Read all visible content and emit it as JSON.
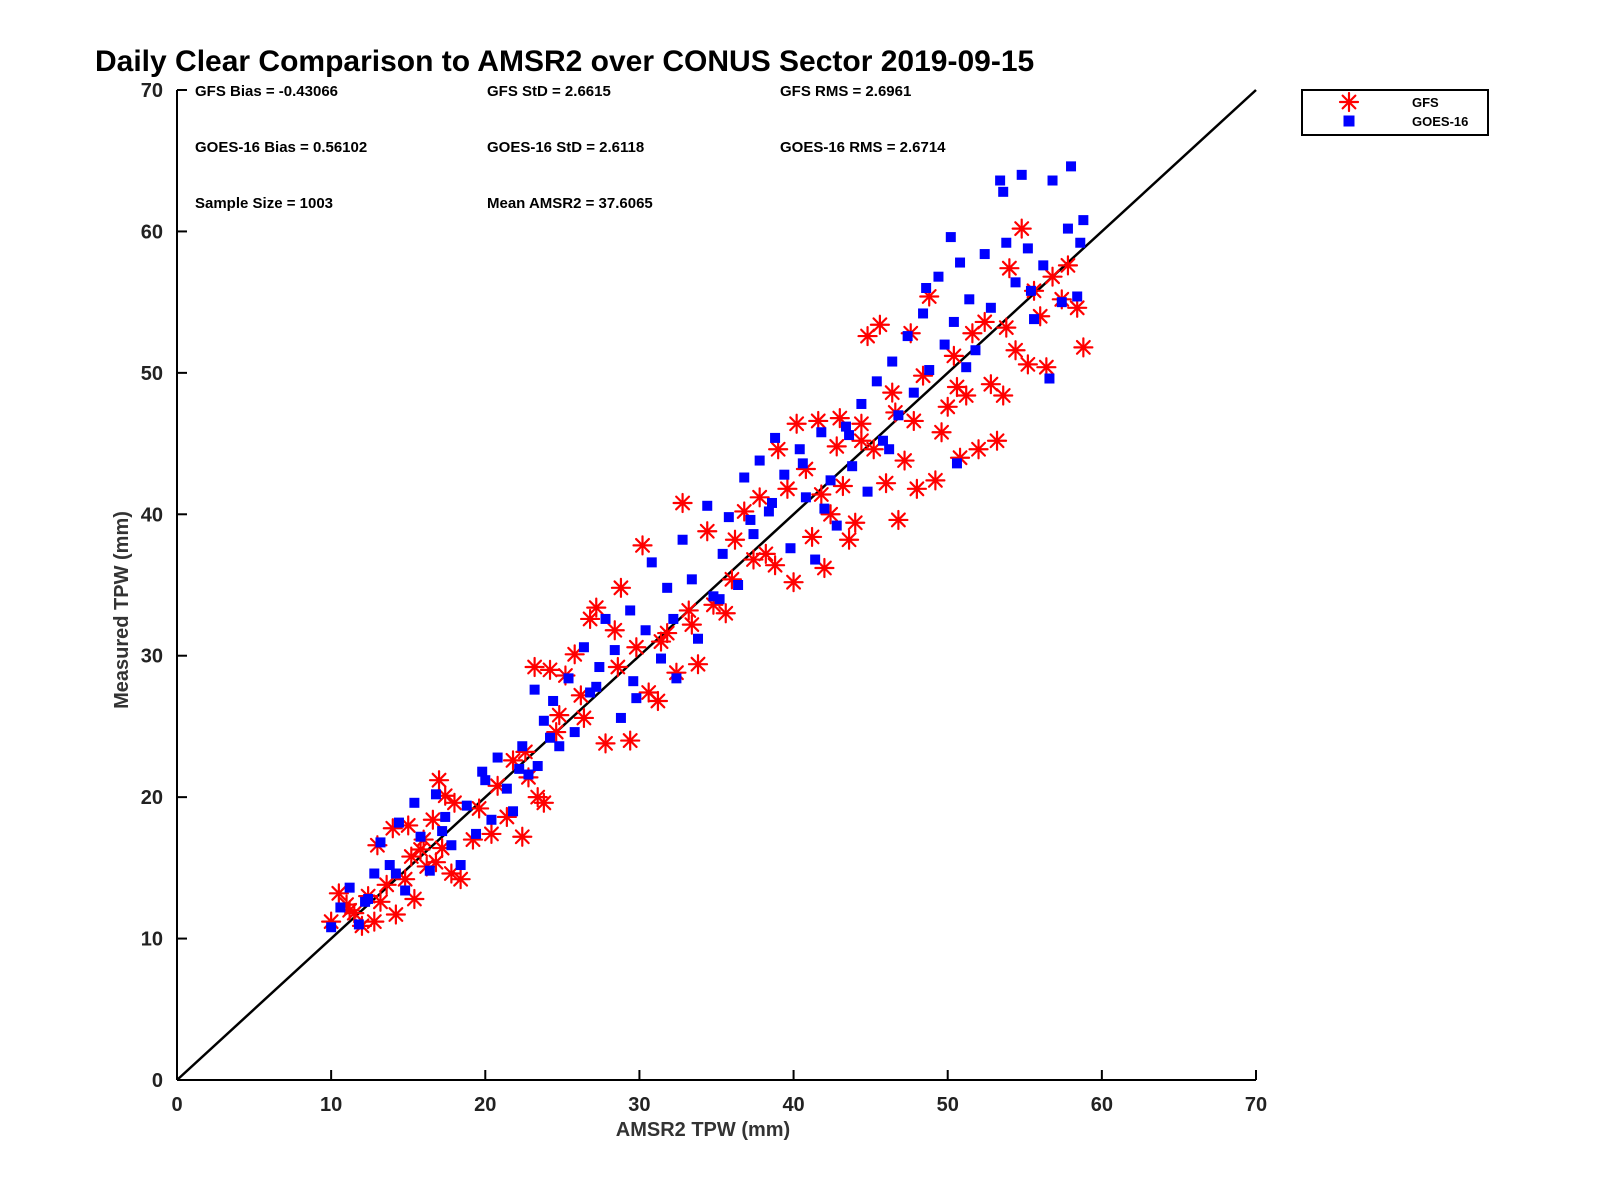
{
  "colors": {
    "gfs": "#ff0000",
    "goes16": "#0000ff",
    "axis": "#000000",
    "identity_line": "#000000"
  },
  "chart_data": {
    "type": "scatter",
    "title": "Daily Clear Comparison to AMSR2 over CONUS Sector 2019-09-15",
    "xlabel": "AMSR2 TPW (mm)",
    "ylabel": "Measured TPW (mm)",
    "xlim": [
      0,
      70
    ],
    "ylim": [
      0,
      70
    ],
    "xticks": [
      0,
      10,
      20,
      30,
      40,
      50,
      60,
      70
    ],
    "yticks": [
      0,
      10,
      20,
      30,
      40,
      50,
      60,
      70
    ],
    "grid": false,
    "legend_position": "outside-top-right",
    "reference_line": {
      "label": "",
      "x": [
        0,
        70
      ],
      "y": [
        0,
        70
      ]
    },
    "stats": {
      "gfs_bias": "GFS Bias = -0.43066",
      "gfs_std": "GFS StD = 2.6615",
      "gfs_rms": "GFS RMS = 2.6961",
      "goes_bias": "GOES-16 Bias = 0.56102",
      "goes_std": "GOES-16 StD = 2.6118",
      "goes_rms": "GOES-16 RMS = 2.6714",
      "sample_size": "Sample Size = 1003",
      "mean_amsr2": "Mean AMSR2 = 37.6065"
    },
    "series": [
      {
        "name": "GFS",
        "marker": "asterisk",
        "color": "#ff0000",
        "points": [
          [
            10.0,
            11.2
          ],
          [
            10.5,
            13.2
          ],
          [
            11.0,
            12.4
          ],
          [
            11.5,
            11.8
          ],
          [
            12.0,
            10.9
          ],
          [
            12.8,
            11.2
          ],
          [
            13.2,
            12.6
          ],
          [
            13.6,
            13.8
          ],
          [
            14.2,
            11.7
          ],
          [
            14.8,
            14.2
          ],
          [
            15.4,
            12.8
          ],
          [
            15.8,
            16.3
          ],
          [
            16.2,
            15.1
          ],
          [
            16.6,
            18.4
          ],
          [
            17.0,
            21.2
          ],
          [
            17.4,
            20.1
          ],
          [
            17.8,
            14.6
          ],
          [
            18.4,
            14.2
          ],
          [
            13.0,
            16.6
          ],
          [
            14.0,
            17.8
          ],
          [
            15.0,
            18.0
          ],
          [
            16.0,
            17.0
          ],
          [
            17.2,
            16.4
          ],
          [
            18.0,
            19.6
          ],
          [
            19.2,
            17.0
          ],
          [
            20.4,
            17.4
          ],
          [
            20.8,
            20.8
          ],
          [
            21.4,
            18.6
          ],
          [
            21.8,
            22.6
          ],
          [
            22.4,
            17.2
          ],
          [
            22.8,
            21.4
          ],
          [
            23.4,
            20.0
          ],
          [
            23.8,
            19.6
          ],
          [
            23.2,
            29.2
          ],
          [
            24.2,
            29.0
          ],
          [
            24.6,
            24.6
          ],
          [
            25.2,
            28.6
          ],
          [
            25.8,
            30.1
          ],
          [
            26.2,
            27.2
          ],
          [
            26.8,
            32.6
          ],
          [
            27.2,
            33.4
          ],
          [
            27.8,
            23.8
          ],
          [
            28.4,
            31.8
          ],
          [
            28.8,
            34.8
          ],
          [
            29.4,
            24.0
          ],
          [
            29.8,
            30.6
          ],
          [
            30.2,
            37.8
          ],
          [
            30.6,
            27.4
          ],
          [
            31.2,
            26.8
          ],
          [
            31.8,
            31.6
          ],
          [
            32.4,
            28.8
          ],
          [
            32.8,
            40.8
          ],
          [
            33.2,
            33.2
          ],
          [
            33.8,
            29.4
          ],
          [
            34.4,
            38.8
          ],
          [
            34.8,
            33.6
          ],
          [
            35.6,
            33.0
          ],
          [
            36.2,
            38.2
          ],
          [
            36.8,
            40.2
          ],
          [
            37.4,
            36.8
          ],
          [
            38.2,
            37.2
          ],
          [
            38.8,
            36.4
          ],
          [
            39.6,
            41.8
          ],
          [
            40.0,
            35.2
          ],
          [
            40.2,
            46.4
          ],
          [
            40.8,
            43.2
          ],
          [
            41.2,
            38.4
          ],
          [
            41.6,
            46.6
          ],
          [
            42.0,
            36.2
          ],
          [
            42.4,
            40.0
          ],
          [
            42.8,
            44.8
          ],
          [
            43.2,
            42.0
          ],
          [
            43.6,
            38.2
          ],
          [
            44.0,
            39.4
          ],
          [
            44.4,
            46.4
          ],
          [
            44.8,
            52.6
          ],
          [
            45.2,
            44.6
          ],
          [
            45.6,
            53.4
          ],
          [
            46.0,
            42.2
          ],
          [
            46.4,
            48.6
          ],
          [
            46.8,
            39.6
          ],
          [
            47.2,
            43.8
          ],
          [
            47.6,
            52.8
          ],
          [
            48.0,
            41.8
          ],
          [
            48.4,
            49.8
          ],
          [
            48.8,
            55.4
          ],
          [
            49.2,
            42.4
          ],
          [
            49.6,
            45.8
          ],
          [
            50.0,
            47.6
          ],
          [
            50.4,
            51.2
          ],
          [
            50.8,
            44.0
          ],
          [
            51.2,
            48.4
          ],
          [
            51.6,
            52.8
          ],
          [
            52.0,
            44.6
          ],
          [
            52.4,
            53.6
          ],
          [
            52.8,
            49.2
          ],
          [
            53.2,
            45.2
          ],
          [
            53.6,
            48.4
          ],
          [
            54.0,
            57.4
          ],
          [
            54.4,
            51.6
          ],
          [
            54.8,
            60.2
          ],
          [
            55.2,
            50.6
          ],
          [
            55.6,
            55.8
          ],
          [
            56.0,
            54.0
          ],
          [
            56.4,
            50.4
          ],
          [
            56.8,
            56.8
          ],
          [
            57.4,
            55.2
          ],
          [
            57.8,
            57.6
          ],
          [
            58.4,
            54.6
          ],
          [
            58.8,
            51.8
          ],
          [
            44.4,
            45.2
          ],
          [
            39.0,
            44.6
          ],
          [
            37.8,
            41.2
          ],
          [
            46.6,
            47.2
          ],
          [
            50.6,
            49.0
          ],
          [
            43.0,
            46.8
          ],
          [
            33.4,
            32.2
          ],
          [
            28.6,
            29.2
          ],
          [
            24.8,
            25.8
          ],
          [
            19.6,
            19.2
          ],
          [
            15.2,
            15.8
          ],
          [
            12.4,
            13.0
          ],
          [
            11.2,
            12.0
          ],
          [
            36.0,
            35.4
          ],
          [
            41.8,
            41.4
          ],
          [
            47.8,
            46.6
          ],
          [
            53.8,
            53.2
          ],
          [
            26.4,
            25.6
          ],
          [
            31.4,
            31.0
          ],
          [
            22.6,
            23.2
          ],
          [
            16.8,
            15.4
          ]
        ]
      },
      {
        "name": "GOES-16",
        "marker": "square",
        "color": "#0000ff",
        "points": [
          [
            10.0,
            10.8
          ],
          [
            10.6,
            12.2
          ],
          [
            11.2,
            13.6
          ],
          [
            11.8,
            11.0
          ],
          [
            12.4,
            12.8
          ],
          [
            12.8,
            14.6
          ],
          [
            13.2,
            16.8
          ],
          [
            13.8,
            15.2
          ],
          [
            14.4,
            18.2
          ],
          [
            14.8,
            13.4
          ],
          [
            15.4,
            19.6
          ],
          [
            15.8,
            17.2
          ],
          [
            16.4,
            14.8
          ],
          [
            16.8,
            20.2
          ],
          [
            17.4,
            18.6
          ],
          [
            17.8,
            16.6
          ],
          [
            18.4,
            15.2
          ],
          [
            18.8,
            19.4
          ],
          [
            19.4,
            17.4
          ],
          [
            20.0,
            21.2
          ],
          [
            20.4,
            18.4
          ],
          [
            20.8,
            22.8
          ],
          [
            21.4,
            20.6
          ],
          [
            21.8,
            19.0
          ],
          [
            22.4,
            23.6
          ],
          [
            22.8,
            21.6
          ],
          [
            23.4,
            22.2
          ],
          [
            23.2,
            27.6
          ],
          [
            23.8,
            25.4
          ],
          [
            24.4,
            26.8
          ],
          [
            24.8,
            23.6
          ],
          [
            25.4,
            28.4
          ],
          [
            25.8,
            24.6
          ],
          [
            26.4,
            30.6
          ],
          [
            26.8,
            27.4
          ],
          [
            27.4,
            29.2
          ],
          [
            27.8,
            32.6
          ],
          [
            28.4,
            30.4
          ],
          [
            28.8,
            25.6
          ],
          [
            29.4,
            33.2
          ],
          [
            29.8,
            27.0
          ],
          [
            30.4,
            31.8
          ],
          [
            30.8,
            36.6
          ],
          [
            31.4,
            29.8
          ],
          [
            31.8,
            34.8
          ],
          [
            32.4,
            28.4
          ],
          [
            32.8,
            38.2
          ],
          [
            33.4,
            35.4
          ],
          [
            33.8,
            31.2
          ],
          [
            34.4,
            40.6
          ],
          [
            34.8,
            34.2
          ],
          [
            35.4,
            37.2
          ],
          [
            35.8,
            39.8
          ],
          [
            36.4,
            35.0
          ],
          [
            36.8,
            42.6
          ],
          [
            37.4,
            38.6
          ],
          [
            37.8,
            43.8
          ],
          [
            38.4,
            40.2
          ],
          [
            38.8,
            45.4
          ],
          [
            39.4,
            42.8
          ],
          [
            39.8,
            37.6
          ],
          [
            40.4,
            44.6
          ],
          [
            40.8,
            41.2
          ],
          [
            41.4,
            36.8
          ],
          [
            41.8,
            45.8
          ],
          [
            42.4,
            42.4
          ],
          [
            42.8,
            39.2
          ],
          [
            43.4,
            46.2
          ],
          [
            43.8,
            43.4
          ],
          [
            44.4,
            47.8
          ],
          [
            44.8,
            41.6
          ],
          [
            45.4,
            49.4
          ],
          [
            45.8,
            45.2
          ],
          [
            46.4,
            50.8
          ],
          [
            46.8,
            47.0
          ],
          [
            47.4,
            52.6
          ],
          [
            47.8,
            48.6
          ],
          [
            48.4,
            54.2
          ],
          [
            48.8,
            50.2
          ],
          [
            49.4,
            56.8
          ],
          [
            49.8,
            52.0
          ],
          [
            50.4,
            53.6
          ],
          [
            50.8,
            57.8
          ],
          [
            51.4,
            55.2
          ],
          [
            51.8,
            51.6
          ],
          [
            52.4,
            58.4
          ],
          [
            52.8,
            54.6
          ],
          [
            53.4,
            63.6
          ],
          [
            53.8,
            59.2
          ],
          [
            54.4,
            56.4
          ],
          [
            54.8,
            64.0
          ],
          [
            55.2,
            58.8
          ],
          [
            55.6,
            53.8
          ],
          [
            56.2,
            57.6
          ],
          [
            56.8,
            63.6
          ],
          [
            57.4,
            55.0
          ],
          [
            58.0,
            64.6
          ],
          [
            58.4,
            55.4
          ],
          [
            58.8,
            60.8
          ],
          [
            58.6,
            59.2
          ],
          [
            57.8,
            60.2
          ],
          [
            53.6,
            62.8
          ],
          [
            50.2,
            59.6
          ],
          [
            48.6,
            56.0
          ],
          [
            43.6,
            45.6
          ],
          [
            40.6,
            43.6
          ],
          [
            37.2,
            39.6
          ],
          [
            32.2,
            32.6
          ],
          [
            27.2,
            27.8
          ],
          [
            22.2,
            22.0
          ],
          [
            17.2,
            17.6
          ],
          [
            12.2,
            12.6
          ],
          [
            35.2,
            34.0
          ],
          [
            46.2,
            44.6
          ],
          [
            51.2,
            50.4
          ],
          [
            55.4,
            55.8
          ],
          [
            29.6,
            28.2
          ],
          [
            19.8,
            21.8
          ],
          [
            24.2,
            24.2
          ],
          [
            42.0,
            40.4
          ],
          [
            38.6,
            40.8
          ],
          [
            14.2,
            14.6
          ],
          [
            56.6,
            49.6
          ],
          [
            50.6,
            43.6
          ]
        ]
      }
    ]
  }
}
